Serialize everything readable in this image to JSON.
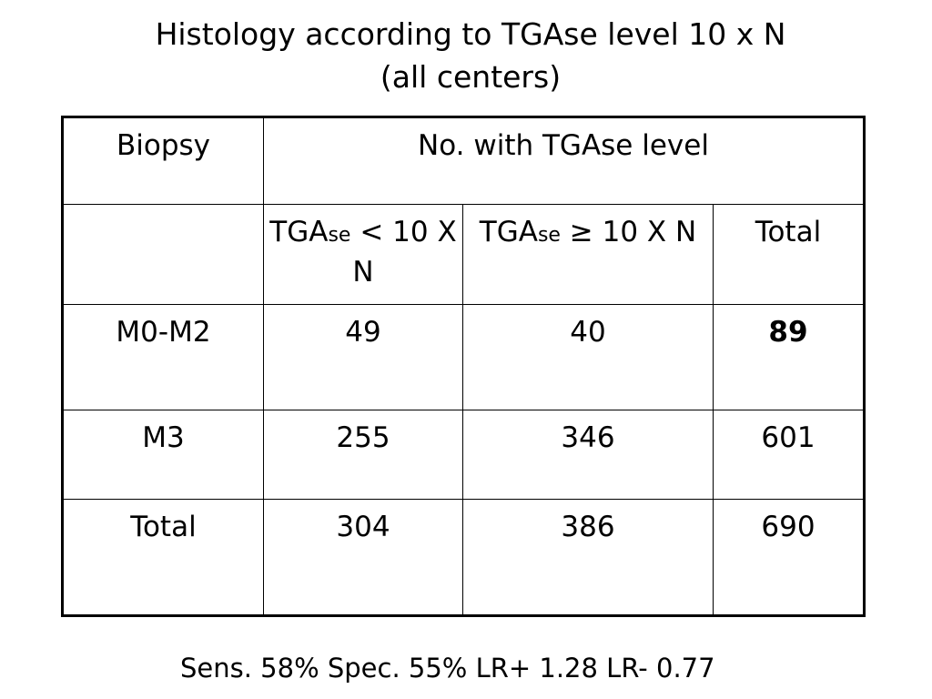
{
  "title": {
    "line1": "Histology according to TGAse level 10 x N",
    "line2": "(all centers)"
  },
  "table": {
    "header_biopsy": "Biopsy",
    "header_group": "No. with TGAse level",
    "col_lt_prefix": "TGA",
    "col_lt_sub": "se",
    "col_lt_suffix": " < 10 X N",
    "col_ge_prefix": "TGA",
    "col_ge_sub": "se",
    "col_ge_suffix": " ≥ 10 X N",
    "col_total": "Total",
    "rows": [
      {
        "label": "M0-M2",
        "lt": "49",
        "ge": "40",
        "total": "89"
      },
      {
        "label": "M3",
        "lt": "255",
        "ge": "346",
        "total": "601"
      },
      {
        "label": "Total",
        "lt": "304",
        "ge": "386",
        "total": "690"
      }
    ]
  },
  "footer": "Sens. 58%  Spec. 55%  LR+ 1.28  LR- 0.77",
  "chart_data": {
    "type": "table",
    "title": "Histology according to TGAse level 10 x N (all centers)",
    "row_header": "Biopsy",
    "column_group": "No. with TGAse level",
    "columns": [
      "TGAse < 10 X N",
      "TGAse ≥ 10 X N",
      "Total"
    ],
    "rows": [
      {
        "Biopsy": "M0-M2",
        "values": [
          49,
          40,
          89
        ]
      },
      {
        "Biopsy": "M3",
        "values": [
          255,
          346,
          601
        ]
      },
      {
        "Biopsy": "Total",
        "values": [
          304,
          386,
          690
        ]
      }
    ],
    "summary": {
      "Sens.": "58%",
      "Spec.": "55%",
      "LR+": "1.28",
      "LR-": "0.77"
    }
  }
}
